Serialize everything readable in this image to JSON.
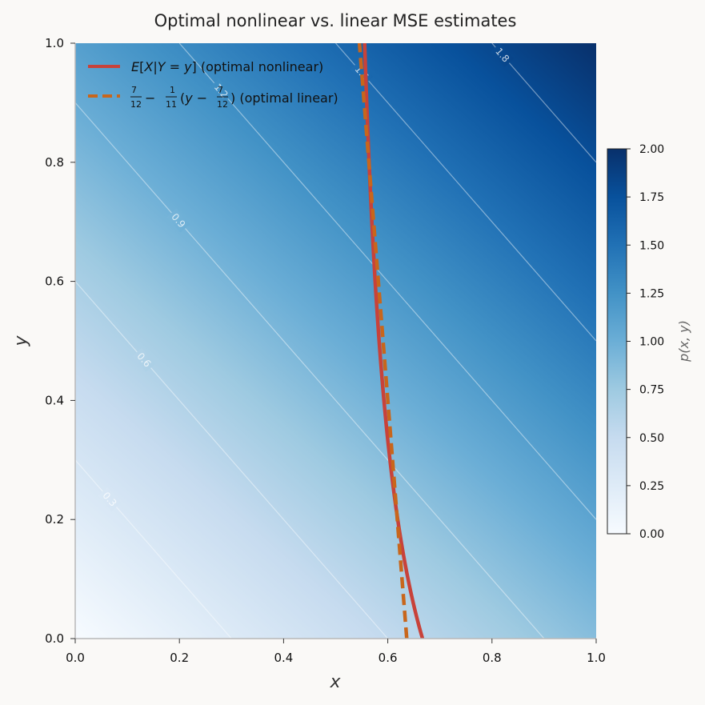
{
  "chart_data": {
    "type": "heatmap",
    "title": "Optimal nonlinear vs. linear MSE estimates",
    "xlabel": "x",
    "ylabel": "y",
    "xlim": [
      0.0,
      1.0
    ],
    "ylim": [
      0.0,
      1.0
    ],
    "x_ticks": [
      "0.0",
      "0.2",
      "0.4",
      "0.6",
      "0.8",
      "1.0"
    ],
    "y_ticks": [
      "0.0",
      "0.2",
      "0.4",
      "0.6",
      "0.8",
      "1.0"
    ],
    "heatmap": {
      "density": "p(x, y) = x + y",
      "colormap": "Blues",
      "vmin": 0.0,
      "vmax": 2.0,
      "colorbar_label": "p(x, y)",
      "colorbar_ticks": [
        "0.00",
        "0.25",
        "0.50",
        "0.75",
        "1.00",
        "1.25",
        "1.50",
        "1.75",
        "2.00"
      ]
    },
    "contours": {
      "levels": [
        0.3,
        0.6,
        0.9,
        1.2,
        1.5,
        1.8
      ],
      "labels": [
        "0.3",
        "0.6",
        "0.9",
        "1.2",
        "1.5",
        "1.8"
      ]
    },
    "series": [
      {
        "name": "E[X|Y = y]  (optimal nonlinear)",
        "style": "solid",
        "color": "#c8423a",
        "x": [
          0.6667,
          0.6364,
          0.6154,
          0.6,
          0.5882,
          0.5789,
          0.5714,
          0.5652,
          0.56,
          0.5556,
          0.5517
        ],
        "y": [
          0.0,
          0.1,
          0.2,
          0.3,
          0.4,
          0.5,
          0.6,
          0.7,
          0.8,
          0.9,
          1.0
        ]
      },
      {
        "name": "7/12 − 1/11 (y − 7/12)  (optimal linear)",
        "style": "dashed",
        "color": "#c8661c",
        "x": [
          0.6364,
          0.5455
        ],
        "y": [
          0.0,
          1.0
        ]
      }
    ],
    "legend": {
      "position": "upper-left",
      "entries": [
        {
          "main": "E[X|Y = y]",
          "suffix": "(optimal nonlinear)"
        },
        {
          "main": "7/12 − 1/11 (y − 7/12)",
          "suffix": "(optimal linear)"
        }
      ]
    }
  }
}
